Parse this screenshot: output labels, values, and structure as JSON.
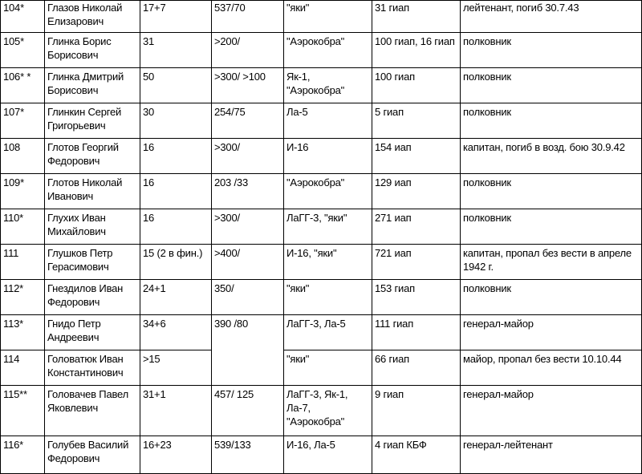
{
  "rows": [
    {
      "num": "104*",
      "name": "Глазов Николай Елизарович",
      "victories": "17+7",
      "sorties": "537/70",
      "aircraft": "\"яки\"",
      "unit": "31 гиап",
      "note": "лейтенант, погиб 30.7.43"
    },
    {
      "num": "105*",
      "name": "Глинка Борис Борисович",
      "victories": "31",
      "sorties": ">200/",
      "aircraft": "\"Аэрокобра\"",
      "unit": "100 гиап, 16 гиап",
      "note": "полковник"
    },
    {
      "num": "106* *",
      "name": "Глинка Дмитрий Борисович",
      "victories": "50",
      "sorties": ">300/ >100",
      "aircraft": "Як-1, \"Аэрокобра\"",
      "unit": "100 гиап",
      "note": "полковник"
    },
    {
      "num": "107*",
      "name": "Глинкин Сергей Григорьевич",
      "victories": "30",
      "sorties": "254/75",
      "aircraft": "Ла-5",
      "unit": "5 гиап",
      "note": "полковник"
    },
    {
      "num": "108",
      "name": "Глотов Георгий Федорович",
      "victories": "16",
      "sorties": ">300/",
      "aircraft": "И-16",
      "unit": "154 иап",
      "note": "капитан, погиб в возд. бою 30.9.42"
    },
    {
      "num": "109*",
      "name": "Глотов Николай Иванович",
      "victories": "16",
      "sorties": "203 /33",
      "aircraft": "\"Аэрокобра\"",
      "unit": "129 иап",
      "note": "полковник"
    },
    {
      "num": "110*",
      "name": "Глухих Иван Михайлович",
      "victories": "16",
      "sorties": ">300/",
      "aircraft": "ЛаГГ-3, \"яки\"",
      "unit": "271 иап",
      "note": "полковник"
    },
    {
      "num": "111",
      "name": "Глушков Петр Герасимович",
      "victories": "15 (2 в фин.)",
      "sorties": ">400/",
      "aircraft": "И-16, \"яки\"",
      "unit": "721 иап",
      "note": "капитан, пропал без вести в апреле 1942 г."
    },
    {
      "num": "112*",
      "name": "Гнездилов Иван Федорович",
      "victories": "24+1",
      "sorties": "350/",
      "aircraft": "\"яки\"",
      "unit": "153 гиап",
      "note": "полковник"
    },
    {
      "num": "113*",
      "name": "Гнидо Петр Андреевич",
      "victories": "34+6",
      "sorties": "390 /80",
      "aircraft": "ЛаГГ-3, Ла-5",
      "unit": "111 гиап",
      "note": "генерал-майор"
    },
    {
      "num": "114",
      "name": "Головатюк Иван Константинович",
      "victories": ">15",
      "sorties": "",
      "aircraft": "\"яки\"",
      "unit": "66 гиап",
      "note": "майор, пропал без вести 10.10.44"
    },
    {
      "num": "115**",
      "name": "Головачев Павел Яковлевич",
      "victories": "31+1",
      "sorties": "457/ 125",
      "aircraft": "ЛаГГ-3, Як-1, Ла-7, \"Аэрокобра\"",
      "unit": "9 гиап",
      "note": "генерал-майор"
    },
    {
      "num": "116*",
      "name": "Голубев Василий Федорович",
      "victories": "16+23",
      "sorties": "539/133",
      "aircraft": "И-16, Ла-5",
      "unit": "4 гиап КБФ",
      "note": "генерал-лейтенант"
    }
  ]
}
